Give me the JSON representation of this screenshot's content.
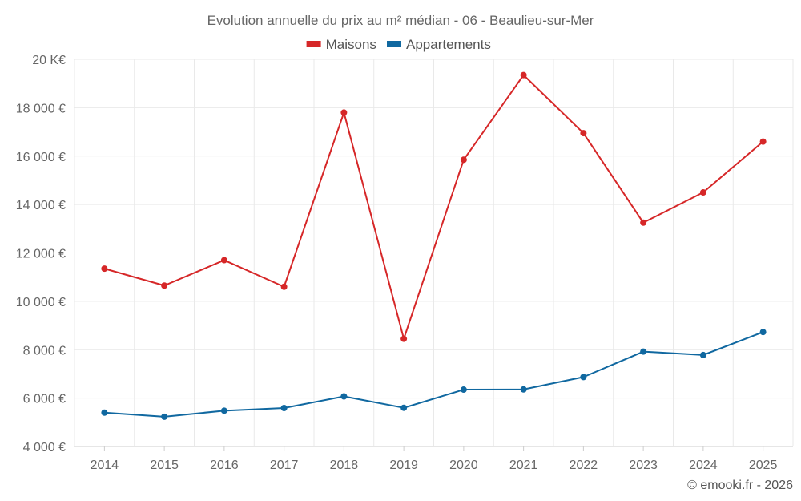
{
  "chart_data": {
    "type": "line",
    "title": "Evolution annuelle du prix au m² médian - 06 - Beaulieu-sur-Mer",
    "categories": [
      "2014",
      "2015",
      "2016",
      "2017",
      "2018",
      "2019",
      "2020",
      "2021",
      "2022",
      "2023",
      "2024",
      "2025"
    ],
    "series": [
      {
        "name": "Maisons",
        "color": "#d62728",
        "values": [
          11350,
          10650,
          11700,
          10600,
          17800,
          8450,
          15850,
          19350,
          16950,
          13250,
          14500,
          16600
        ]
      },
      {
        "name": "Appartements",
        "color": "#1068a0",
        "values": [
          5400,
          5230,
          5480,
          5590,
          6070,
          5600,
          6350,
          6360,
          6870,
          7920,
          7780,
          8730
        ]
      }
    ],
    "ylim": [
      4000,
      20000
    ],
    "yticks": [
      {
        "value": 20000,
        "label": "20 K€"
      },
      {
        "value": 18000,
        "label": "18 000 €"
      },
      {
        "value": 16000,
        "label": "16 000 €"
      },
      {
        "value": 14000,
        "label": "14 000 €"
      },
      {
        "value": 12000,
        "label": "12 000 €"
      },
      {
        "value": 10000,
        "label": "10 000 €"
      },
      {
        "value": 8000,
        "label": "8 000 €"
      },
      {
        "value": 6000,
        "label": "6 000 €"
      },
      {
        "value": 4000,
        "label": "4 000 €"
      }
    ],
    "xlabel": "",
    "ylabel": "",
    "grid": true,
    "legend_position": "top-center"
  },
  "credit": "© emooki.fr - 2026"
}
